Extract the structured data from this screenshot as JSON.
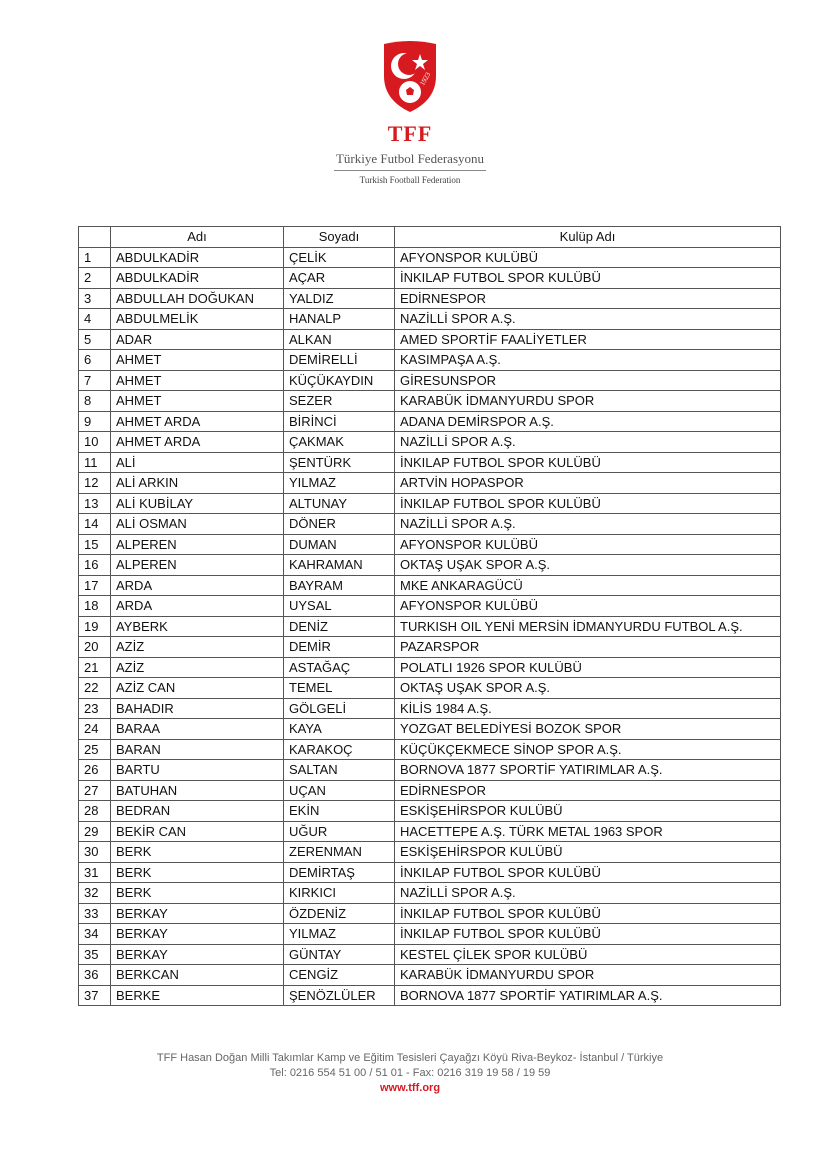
{
  "header": {
    "logo_year": "1923",
    "brand": "TFF",
    "name_tr": "Türkiye Futbol Federasyonu",
    "name_en": "Turkish Football Federation"
  },
  "table": {
    "columns": [
      "Adı",
      "Soyadı",
      "Kulüp Adı"
    ],
    "rows": [
      [
        1,
        "ABDULKADİR",
        "ÇELİK",
        "AFYONSPOR KULÜBÜ"
      ],
      [
        2,
        "ABDULKADİR",
        "AÇAR",
        "İNKILAP FUTBOL SPOR KULÜBÜ"
      ],
      [
        3,
        "ABDULLAH DOĞUKAN",
        "YALDIZ",
        "EDİRNESPOR"
      ],
      [
        4,
        "ABDULMELİK",
        "HANALP",
        "NAZİLLİ SPOR A.Ş."
      ],
      [
        5,
        "ADAR",
        "ALKAN",
        "AMED SPORTİF FAALİYETLER"
      ],
      [
        6,
        "AHMET",
        "DEMİRELLİ",
        "KASIMPAŞA A.Ş."
      ],
      [
        7,
        "AHMET",
        "KÜÇÜKAYDIN",
        "GİRESUNSPOR"
      ],
      [
        8,
        "AHMET",
        "SEZER",
        "KARABÜK İDMANYURDU SPOR"
      ],
      [
        9,
        "AHMET ARDA",
        "BİRİNCİ",
        "ADANA DEMİRSPOR A.Ş."
      ],
      [
        10,
        "AHMET ARDA",
        "ÇAKMAK",
        "NAZİLLİ SPOR A.Ş."
      ],
      [
        11,
        "ALİ",
        "ŞENTÜRK",
        "İNKILAP FUTBOL SPOR KULÜBÜ"
      ],
      [
        12,
        "ALİ ARKIN",
        "YILMAZ",
        "ARTVİN HOPASPOR"
      ],
      [
        13,
        "ALİ KUBİLAY",
        "ALTUNAY",
        "İNKILAP FUTBOL SPOR KULÜBÜ"
      ],
      [
        14,
        "ALİ OSMAN",
        "DÖNER",
        "NAZİLLİ SPOR A.Ş."
      ],
      [
        15,
        "ALPEREN",
        "DUMAN",
        "AFYONSPOR KULÜBÜ"
      ],
      [
        16,
        "ALPEREN",
        "KAHRAMAN",
        "OKTAŞ UŞAK SPOR A.Ş."
      ],
      [
        17,
        "ARDA",
        "BAYRAM",
        "MKE ANKARAGÜCÜ"
      ],
      [
        18,
        "ARDA",
        "UYSAL",
        "AFYONSPOR KULÜBÜ"
      ],
      [
        19,
        "AYBERK",
        "DENİZ",
        "TURKISH OIL YENİ MERSİN İDMANYURDU FUTBOL A.Ş."
      ],
      [
        20,
        "AZİZ",
        "DEMİR",
        "PAZARSPOR"
      ],
      [
        21,
        "AZİZ",
        "ASTAĞAÇ",
        "POLATLI 1926 SPOR KULÜBÜ"
      ],
      [
        22,
        "AZİZ CAN",
        "TEMEL",
        "OKTAŞ UŞAK SPOR A.Ş."
      ],
      [
        23,
        "BAHADIR",
        "GÖLGELİ",
        "KİLİS 1984 A.Ş."
      ],
      [
        24,
        "BARAA",
        "KAYA",
        "YOZGAT BELEDİYESİ BOZOK SPOR"
      ],
      [
        25,
        "BARAN",
        "KARAKOÇ",
        "KÜÇÜKÇEKMECE SİNOP SPOR A.Ş."
      ],
      [
        26,
        "BARTU",
        "SALTAN",
        "BORNOVA 1877 SPORTİF YATIRIMLAR A.Ş."
      ],
      [
        27,
        "BATUHAN",
        "UÇAN",
        "EDİRNESPOR"
      ],
      [
        28,
        "BEDRAN",
        "EKİN",
        "ESKİŞEHİRSPOR KULÜBÜ"
      ],
      [
        29,
        "BEKİR CAN",
        "UĞUR",
        "HACETTEPE A.Ş. TÜRK METAL 1963 SPOR"
      ],
      [
        30,
        "BERK",
        "ZERENMAN",
        "ESKİŞEHİRSPOR KULÜBÜ"
      ],
      [
        31,
        "BERK",
        "DEMİRTAŞ",
        "İNKILAP FUTBOL SPOR KULÜBÜ"
      ],
      [
        32,
        "BERK",
        "KIRKICI",
        "NAZİLLİ SPOR A.Ş."
      ],
      [
        33,
        "BERKAY",
        "ÖZDENİZ",
        "İNKILAP FUTBOL SPOR KULÜBÜ"
      ],
      [
        34,
        "BERKAY",
        "YILMAZ",
        "İNKILAP FUTBOL SPOR KULÜBÜ"
      ],
      [
        35,
        "BERKAY",
        "GÜNTAY",
        "KESTEL ÇİLEK SPOR KULÜBÜ"
      ],
      [
        36,
        "BERKCAN",
        "CENGİZ",
        "KARABÜK İDMANYURDU SPOR"
      ],
      [
        37,
        "BERKE",
        "ŞENÖZLÜLER",
        "BORNOVA 1877 SPORTİF YATIRIMLAR A.Ş."
      ]
    ]
  },
  "footer": {
    "line1": "TFF Hasan Doğan Milli Takımlar Kamp ve Eğitim Tesisleri Çayağzı Köyü Riva-Beykoz- İstanbul / Türkiye",
    "line2": "Tel: 0216 554 51 00 / 51 01 - Fax: 0216 319 19 58 / 19 59",
    "url": "www.tff.org"
  }
}
